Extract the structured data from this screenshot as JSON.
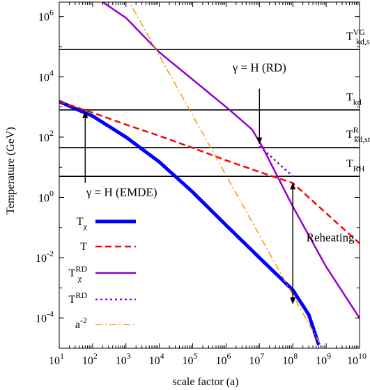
{
  "chart_data": {
    "type": "line",
    "xlabel": "scale factor (a)",
    "ylabel": "Temperature (GeV)",
    "xscale": "log",
    "yscale": "log",
    "xlim": [
      10,
      10000000000
    ],
    "ylim": [
      1e-05,
      3000000
    ],
    "x_ticks": [
      {
        "value": 10,
        "base": "10",
        "exp": "1"
      },
      {
        "value": 100,
        "base": "10",
        "exp": "2"
      },
      {
        "value": 1000,
        "base": "10",
        "exp": "3"
      },
      {
        "value": 10000,
        "base": "10",
        "exp": "4"
      },
      {
        "value": 100000,
        "base": "10",
        "exp": "5"
      },
      {
        "value": 1000000,
        "base": "10",
        "exp": "6"
      },
      {
        "value": 10000000,
        "base": "10",
        "exp": "7"
      },
      {
        "value": 100000000,
        "base": "10",
        "exp": "8"
      },
      {
        "value": 1000000000,
        "base": "10",
        "exp": "9"
      },
      {
        "value": 10000000000,
        "base": "10",
        "exp": "10"
      }
    ],
    "y_ticks": [
      {
        "value": 0.0001,
        "base": "10",
        "exp": "-4"
      },
      {
        "value": 0.01,
        "base": "10",
        "exp": "-2"
      },
      {
        "value": 1,
        "base": "10",
        "exp": "0"
      },
      {
        "value": 100,
        "base": "10",
        "exp": "2"
      },
      {
        "value": 10000,
        "base": "10",
        "exp": "4"
      },
      {
        "value": 1000000,
        "base": "10",
        "exp": "6"
      }
    ],
    "hlines": [
      {
        "value": 80000,
        "label": "T",
        "sub": "kd,std",
        "sup": "VG",
        "label_x": 4000000000,
        "label_y": 170000
      },
      {
        "value": 800,
        "label": "T",
        "sub": "kd",
        "sup": "",
        "label_x": 4000000000,
        "label_y": 1600
      },
      {
        "value": 45,
        "label": "T",
        "sub": "kd,std",
        "sup": "R",
        "label_x": 4000000000,
        "label_y": 95
      },
      {
        "value": 5,
        "label": "T",
        "sub": "RH",
        "sup": "",
        "label_x": 4000000000,
        "label_y": 10
      }
    ],
    "series": [
      {
        "name": "T",
        "sub": "χ",
        "sup": "",
        "color": "#0000ff",
        "dash": "solid",
        "width": 5,
        "points": [
          [
            10,
            1500
          ],
          [
            100,
            500
          ],
          [
            1000,
            100
          ],
          [
            10000,
            15
          ],
          [
            100000,
            1.5
          ],
          [
            1000000,
            0.12
          ],
          [
            10000000,
            0.01
          ],
          [
            100000000,
            0.00085
          ],
          [
            300000000,
            0.00013
          ],
          [
            600000000,
            1.3e-05
          ]
        ]
      },
      {
        "name": "T",
        "sub": "",
        "sup": "",
        "color": "#ff0000",
        "dash": "dashed",
        "width": 2.5,
        "points": [
          [
            10,
            1500
          ],
          [
            100,
            650
          ],
          [
            1000,
            260
          ],
          [
            10000,
            110
          ],
          [
            100000,
            44
          ],
          [
            1000000,
            17
          ],
          [
            10000000,
            7
          ],
          [
            100000000,
            3
          ],
          [
            1000000000,
            0.3
          ],
          [
            10000000000,
            0.03
          ]
        ]
      },
      {
        "name": "T",
        "sub": "χ",
        "sup": "RD",
        "color": "#9400d3",
        "dash": "solid",
        "width": 2.5,
        "points": [
          [
            200,
            3000000
          ],
          [
            1000,
            900000
          ],
          [
            10000,
            65000
          ],
          [
            1000000,
            1000
          ],
          [
            6000000,
            180
          ],
          [
            12000000,
            50
          ],
          [
            100000000,
            0.5
          ],
          [
            1000000000,
            0.005
          ],
          [
            10000000000,
            0.0001
          ]
        ]
      },
      {
        "name": "T",
        "sub": "",
        "sup": "RD",
        "color": "#9400d3",
        "dash": "dotted",
        "width": 2.5,
        "points": [
          [
            10000000,
            50
          ],
          [
            100000000,
            5
          ]
        ]
      },
      {
        "name": "a",
        "sub": "",
        "sup": "-2",
        "color": "#ff9900",
        "dash": "dashdot",
        "width": 1.5,
        "points": [
          [
            400,
            30000000
          ],
          [
            1000000000,
            6e-06
          ]
        ]
      }
    ],
    "annotations": [
      {
        "id": "emde",
        "text": "γ = H (EMDE)",
        "color": "#0000ff",
        "x": 65,
        "y": 1.1,
        "arrow_from": [
          60,
          3
        ],
        "arrow_to": [
          60,
          700
        ]
      },
      {
        "id": "rd",
        "text": "γ = H (RD)",
        "color": "#9400d3",
        "x": 10000000,
        "y": 15000,
        "arrow_from": [
          10000000,
          4000
        ],
        "arrow_to": [
          10000000,
          60
        ]
      },
      {
        "id": "reheating",
        "text": "Reheating",
        "color": "#000000",
        "x": 7000000000,
        "y": 0.035,
        "arrow_from": [
          100000000,
          0.0003
        ],
        "arrow_to": [
          100000000,
          3
        ]
      }
    ]
  }
}
